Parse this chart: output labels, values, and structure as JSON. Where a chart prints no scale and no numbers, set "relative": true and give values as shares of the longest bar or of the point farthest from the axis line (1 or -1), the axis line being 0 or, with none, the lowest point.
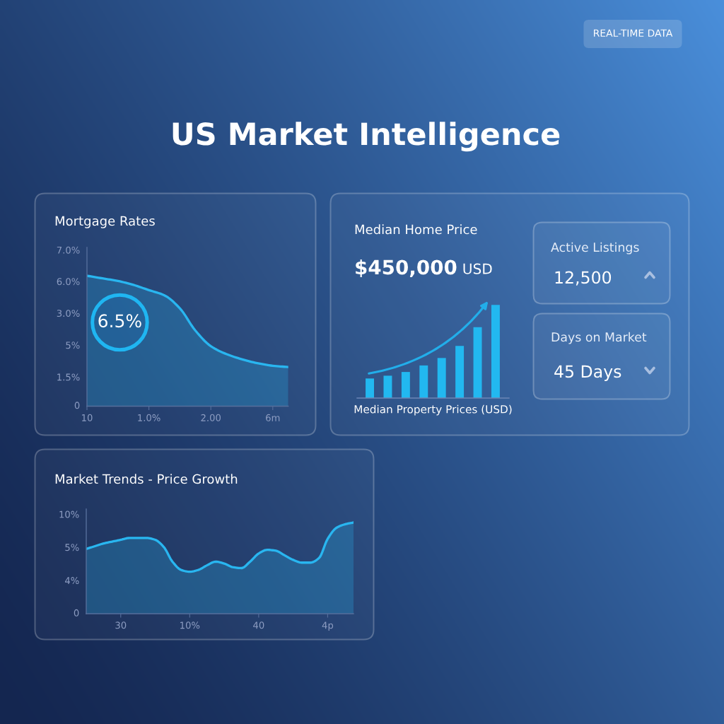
{
  "chart_data": [
    {
      "type": "other",
      "title": "US Market Intelligence",
      "annotations": [
        "REAL-TIME DATA"
      ]
    },
    {
      "type": "area",
      "title": "Mortgage Rates",
      "color": "#29b6f0",
      "relative": true,
      "categories": [
        "10",
        null,
        null,
        null,
        "1.0%",
        null,
        null,
        null,
        "2.00",
        null,
        null,
        null,
        "6m",
        null
      ],
      "values": [
        1,
        0.98,
        0.96,
        0.93,
        0.89,
        0.85,
        0.75,
        0.58,
        0.46,
        0.4,
        0.36,
        0.33,
        0.31,
        0.3
      ],
      "annotations": [
        "7.0%",
        "6.0%",
        "3.0%",
        "5%",
        "1.5%",
        "0",
        "6.5%"
      ]
    },
    {
      "type": "bar",
      "title": "Median Home Price",
      "subtitle": "$450,000",
      "annotations": [
        "USD"
      ],
      "xlabel": "Median Property Prices (USD)",
      "categories": [
        null,
        null,
        null,
        null,
        null,
        null,
        null,
        null
      ],
      "values": [
        0.21,
        0.24,
        0.28,
        0.35,
        0.43,
        0.56,
        0.76,
        1
      ],
      "color": "#22b8f0",
      "relative": true
    },
    {
      "type": "other",
      "title": "Active Listings",
      "annotations": [
        "12,500"
      ]
    },
    {
      "type": "other",
      "title": "Days on Market",
      "annotations": [
        "45 Days"
      ]
    },
    {
      "type": "area",
      "title": "Market Trends - Price Growth",
      "color": "#29b6f0",
      "relative": true,
      "categories": [
        null,
        null,
        null,
        null,
        "30",
        null,
        null,
        null,
        null,
        null,
        null,
        null,
        "10%",
        null,
        null,
        null,
        null,
        null,
        null,
        null,
        "40",
        null,
        null,
        null,
        null,
        null,
        null,
        null,
        "4p",
        null,
        null,
        null
      ],
      "values": [
        0.71,
        0.74,
        0.77,
        0.79,
        0.81,
        0.83,
        0.83,
        0.83,
        0.81,
        0.73,
        0.57,
        0.48,
        0.46,
        0.48,
        0.53,
        0.57,
        0.55,
        0.51,
        0.5,
        0.57,
        0.66,
        0.7,
        0.69,
        0.64,
        0.59,
        0.56,
        0.56,
        0.61,
        0.82,
        0.94,
        0.98,
        1
      ],
      "annotations": [
        "10%",
        "5%",
        "4%",
        "0"
      ]
    }
  ]
}
